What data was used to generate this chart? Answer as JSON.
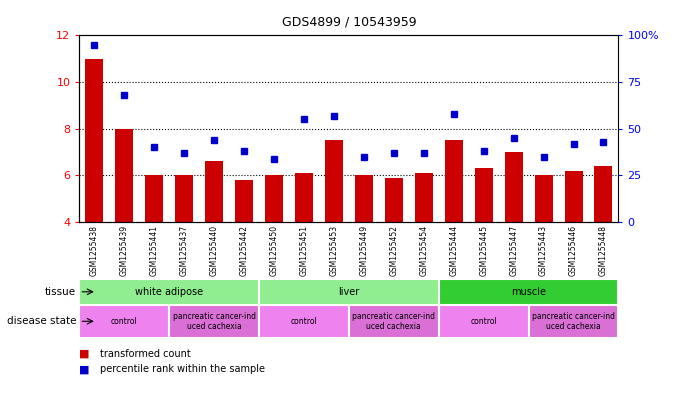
{
  "title": "GDS4899 / 10543959",
  "samples": [
    "GSM1255438",
    "GSM1255439",
    "GSM1255441",
    "GSM1255437",
    "GSM1255440",
    "GSM1255442",
    "GSM1255450",
    "GSM1255451",
    "GSM1255453",
    "GSM1255449",
    "GSM1255452",
    "GSM1255454",
    "GSM1255444",
    "GSM1255445",
    "GSM1255447",
    "GSM1255443",
    "GSM1255446",
    "GSM1255448"
  ],
  "bar_values": [
    11.0,
    8.0,
    6.0,
    6.0,
    6.6,
    5.8,
    6.0,
    6.1,
    7.5,
    6.0,
    5.9,
    6.1,
    7.5,
    6.3,
    7.0,
    6.0,
    6.2,
    6.4
  ],
  "dot_values": [
    95,
    68,
    40,
    37,
    44,
    38,
    34,
    55,
    57,
    35,
    37,
    37,
    58,
    38,
    45,
    35,
    42,
    43
  ],
  "ylim_left": [
    4,
    12
  ],
  "ylim_right": [
    0,
    100
  ],
  "yticks_left": [
    4,
    6,
    8,
    10,
    12
  ],
  "yticks_right": [
    0,
    25,
    50,
    75,
    100
  ],
  "ytick_right_labels": [
    "0",
    "25",
    "50",
    "75",
    "100%"
  ],
  "grid_vals": [
    6,
    8,
    10
  ],
  "bar_color": "#cc0000",
  "dot_color": "#0000cc",
  "tissue_groups": [
    {
      "label": "white adipose",
      "start": 0,
      "end": 6,
      "color": "#90ee90"
    },
    {
      "label": "liver",
      "start": 6,
      "end": 12,
      "color": "#90ee90"
    },
    {
      "label": "muscle",
      "start": 12,
      "end": 18,
      "color": "#228B22"
    }
  ],
  "disease_groups": [
    {
      "label": "control",
      "start": 0,
      "end": 3,
      "color": "#ee82ee"
    },
    {
      "label": "pancreatic cancer-ind\nuced cachexia",
      "start": 3,
      "end": 6,
      "color": "#da70d6"
    },
    {
      "label": "control",
      "start": 6,
      "end": 9,
      "color": "#ee82ee"
    },
    {
      "label": "pancreatic cancer-ind\nuced cachexia",
      "start": 9,
      "end": 12,
      "color": "#da70d6"
    },
    {
      "label": "control",
      "start": 12,
      "end": 15,
      "color": "#ee82ee"
    },
    {
      "label": "pancreatic cancer-ind\nuced cachexia",
      "start": 15,
      "end": 18,
      "color": "#da70d6"
    }
  ],
  "legend_bar_label": "transformed count",
  "legend_dot_label": "percentile rank within the sample",
  "tissue_label": "tissue",
  "disease_label": "disease state",
  "tick_bg_color": "#d3d3d3",
  "tissue_border_color": "#228B22",
  "muscle_color": "#32CD32"
}
